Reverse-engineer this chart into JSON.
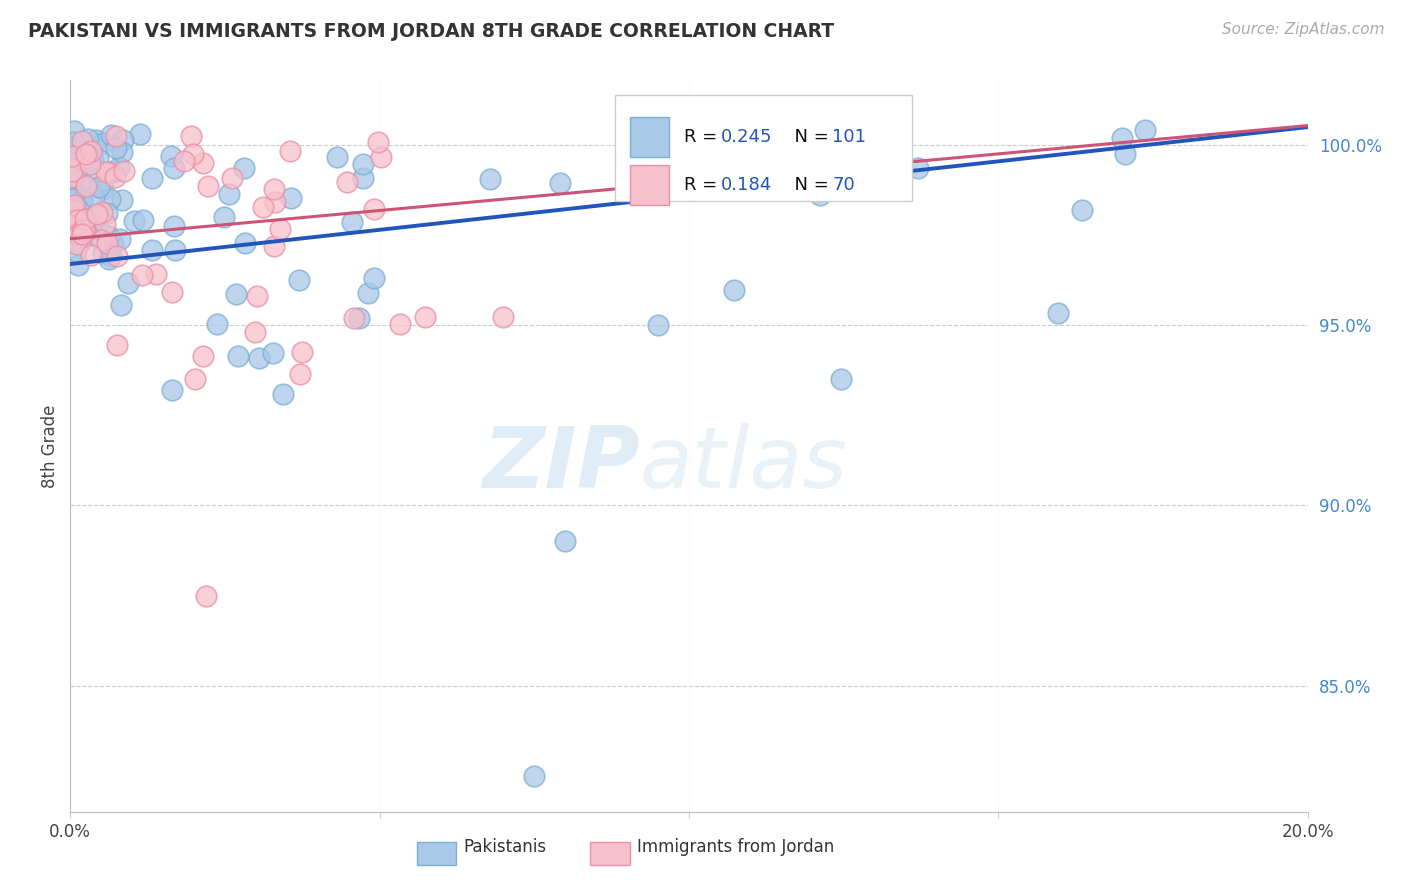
{
  "title": "PAKISTANI VS IMMIGRANTS FROM JORDAN 8TH GRADE CORRELATION CHART",
  "source": "Source: ZipAtlas.com",
  "ylabel": "8th Grade",
  "x_min": 0.0,
  "x_max": 20.0,
  "y_min": 81.5,
  "y_max": 101.8,
  "y_ticks": [
    85.0,
    90.0,
    95.0,
    100.0
  ],
  "y_tick_labels": [
    "85.0%",
    "90.0%",
    "95.0%",
    "100.0%"
  ],
  "blue_fill": "#aac8e8",
  "blue_edge": "#7aafd4",
  "pink_fill": "#f8c0cc",
  "pink_edge": "#e890a8",
  "blue_line_color": "#2255bb",
  "pink_line_color": "#cc5577",
  "legend_R_blue": "0.245",
  "legend_N_blue": "101",
  "legend_R_pink": "0.184",
  "legend_N_pink": "70",
  "title_fontsize": 13.5,
  "source_fontsize": 11,
  "tick_fontsize": 12,
  "legend_fontsize": 13
}
